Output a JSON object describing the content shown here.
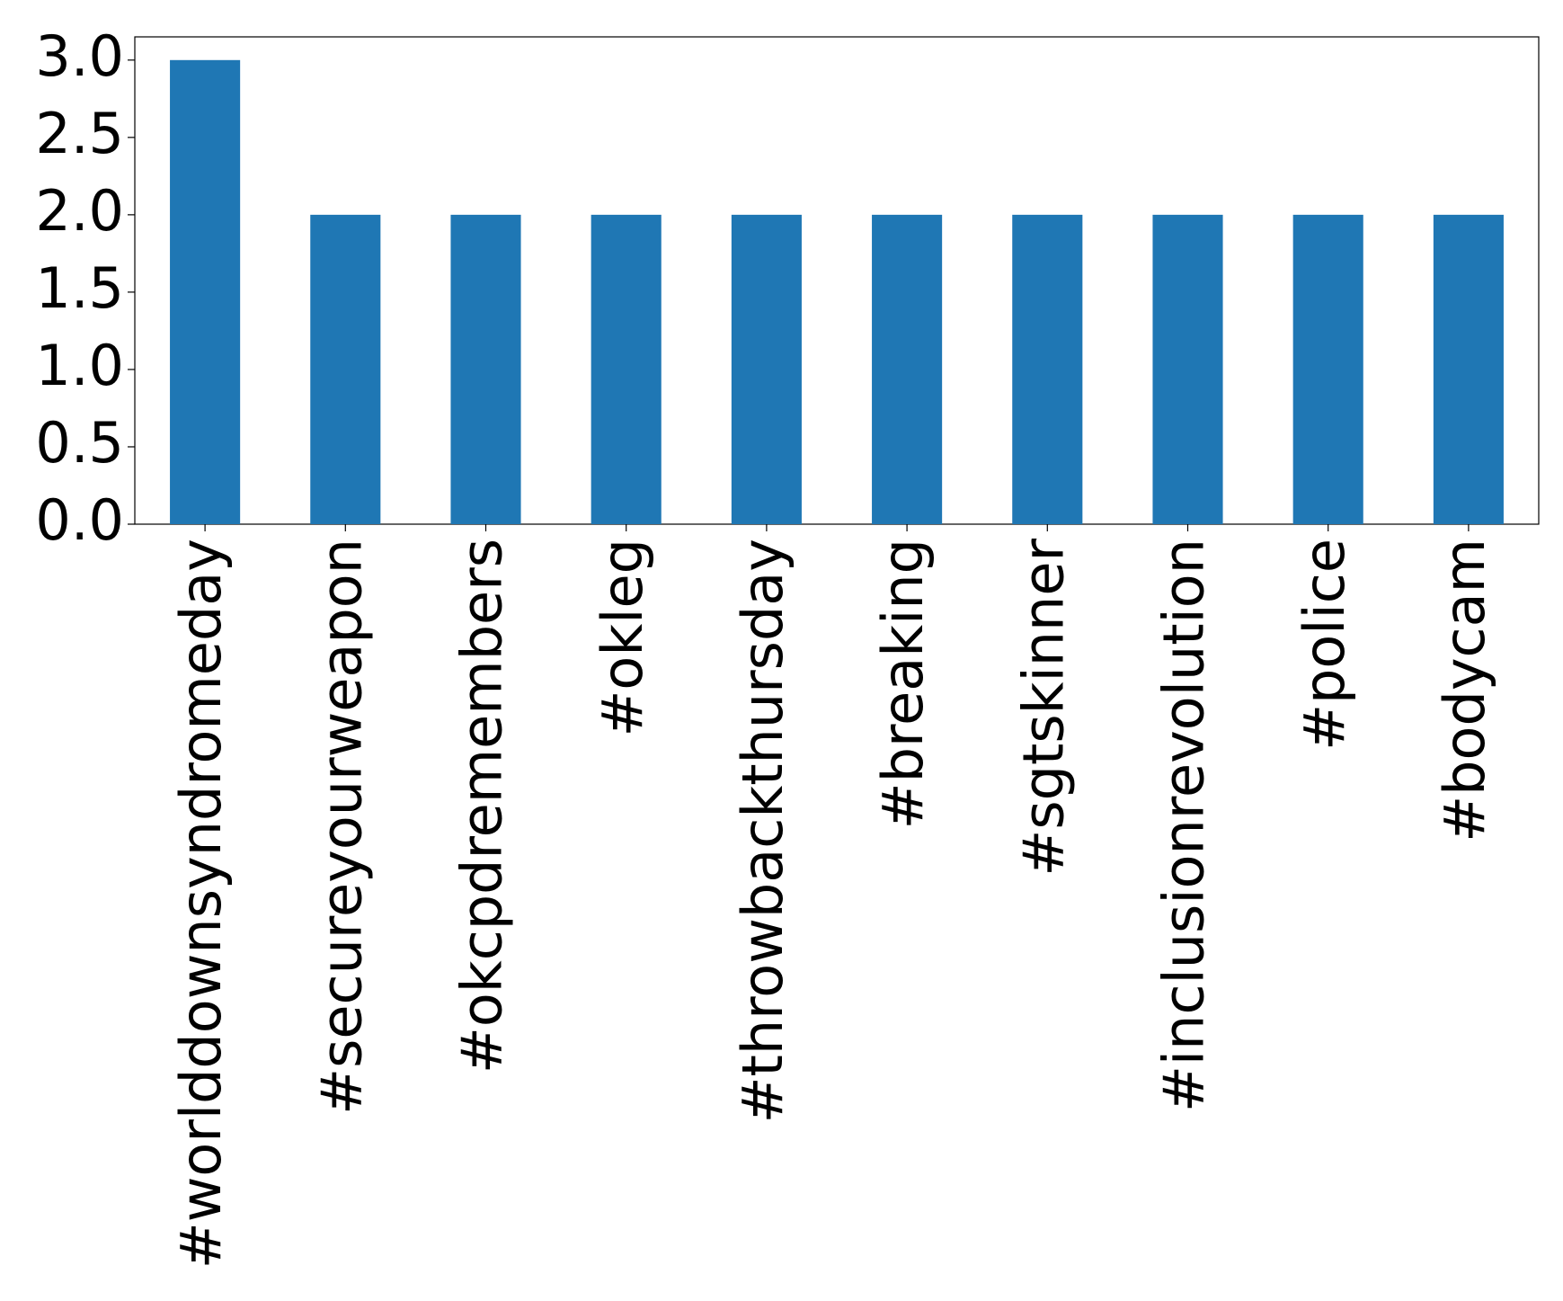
{
  "chart_data": {
    "type": "bar",
    "categories": [
      "#worlddownsyndromeday",
      "#secureyourweapon",
      "#okcpdremembers",
      "#okleg",
      "#throwbackthursday",
      "#breaking",
      "#sgtskinner",
      "#inclusionrevolution",
      "#police",
      "#bodycam"
    ],
    "values": [
      3,
      2,
      2,
      2,
      2,
      2,
      2,
      2,
      2,
      2
    ],
    "color": "#1f77b4",
    "ylim": [
      0,
      3.15
    ],
    "yticks": [
      {
        "value": 0,
        "label": "0.0"
      },
      {
        "value": 0.5,
        "label": "0.5"
      },
      {
        "value": 1,
        "label": "1.0"
      },
      {
        "value": 1.5,
        "label": "1.5"
      },
      {
        "value": 2,
        "label": "2.0"
      },
      {
        "value": 2.5,
        "label": "2.5"
      },
      {
        "value": 3,
        "label": "3.0"
      }
    ],
    "grid": false
  }
}
